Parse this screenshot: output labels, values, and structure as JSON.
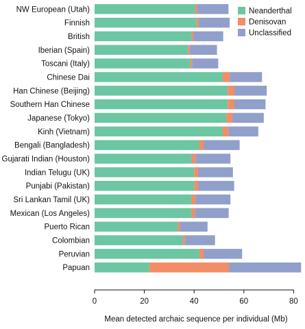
{
  "chart_data": {
    "type": "bar",
    "orientation": "horizontal",
    "stacked": true,
    "xlabel": "Mean detected archaic sequence per individual (Mb)",
    "xlim": [
      0,
      85
    ],
    "xticks": [
      0,
      20,
      40,
      60,
      80
    ],
    "grid": false,
    "legend_position": "top-right",
    "categories": [
      "NW European (Utah)",
      "Finnish",
      "British",
      "Iberian (Spain)",
      "Toscani (Italy)",
      "Chinese Dai",
      "Han Chinese (Beijing)",
      "Southern Han Chinese",
      "Japanese (Tokyo)",
      "Kinh (Vietnam)",
      "Bengali (Bangladesh)",
      "Gujarati Indian (Houston)",
      "Indian Telugu (UK)",
      "Punjabi (Pakistan)",
      "Sri Lankan Tamil (UK)",
      "Mexican (Los Angeles)",
      "Puerto Rican",
      "Colombian",
      "Peruvian",
      "Papuan"
    ],
    "series": [
      {
        "name": "Neanderthal",
        "color": "#6cc6a1",
        "values": [
          40.5,
          41,
          39,
          37.5,
          38.5,
          51.5,
          53.5,
          53.5,
          53,
          51.5,
          42,
          39,
          40,
          40,
          39,
          39,
          33.5,
          35.5,
          42,
          22
        ]
      },
      {
        "name": "Denisovan",
        "color": "#f28d67",
        "values": [
          0.8,
          0.8,
          0.7,
          0.7,
          0.7,
          2.8,
          2.7,
          2.7,
          2.5,
          2.3,
          1.8,
          1.6,
          1.6,
          1.6,
          1.6,
          1.4,
          0.9,
          0.9,
          1.8,
          32
        ]
      },
      {
        "name": "Unclassified",
        "color": "#919fcb",
        "values": [
          12.5,
          12.5,
          12,
          11,
          10.5,
          13,
          13,
          12.5,
          12.5,
          12,
          14.5,
          14,
          14,
          14.5,
          14,
          13.5,
          11,
          12,
          15.5,
          29
        ]
      }
    ]
  }
}
